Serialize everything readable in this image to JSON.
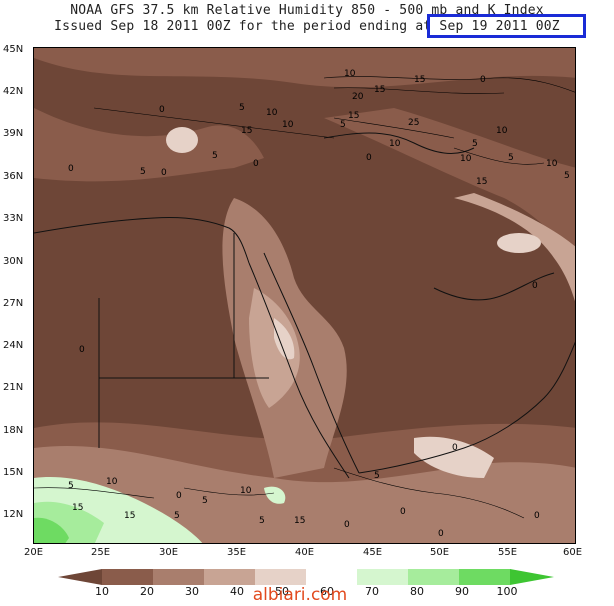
{
  "header": {
    "line1": "NOAA GFS 37.5 km Relative Humidity 850 - 500 mb and K Index",
    "line2": "Issued Sep 18 2011 00Z for the period ending at Sep 19 2011 00Z"
  },
  "axes": {
    "lat_labels": [
      "45N",
      "42N",
      "39N",
      "36N",
      "33N",
      "30N",
      "27N",
      "24N",
      "21N",
      "18N",
      "15N",
      "12N"
    ],
    "lon_labels": [
      "20E",
      "25E",
      "30E",
      "35E",
      "40E",
      "45E",
      "50E",
      "55E",
      "60E"
    ]
  },
  "colorbar": {
    "labels": [
      "10",
      "20",
      "30",
      "40",
      "50",
      "60",
      "70",
      "80",
      "90",
      "100"
    ],
    "colors": [
      "#6e4637",
      "#8a5c4b",
      "#a97e6d",
      "#c8a494",
      "#e6d2c8",
      "#ffffff",
      "#d5f6cf",
      "#a6ec9c",
      "#6edb62",
      "#3ec532"
    ]
  },
  "contour_labels": [
    "10",
    "15",
    "0",
    "0",
    "5",
    "10",
    "15",
    "10",
    "20",
    "15",
    "5",
    "15",
    "25",
    "10",
    "5",
    "0",
    "10",
    "10",
    "5",
    "5",
    "15",
    "10",
    "5",
    "0",
    "5",
    "0",
    "0",
    "0",
    "0",
    "0",
    "5",
    "10",
    "15",
    "5",
    "10",
    "15",
    "5",
    "0",
    "15",
    "0",
    "0",
    "0",
    "0",
    "5",
    "5"
  ],
  "watermark": "albiari.com"
}
